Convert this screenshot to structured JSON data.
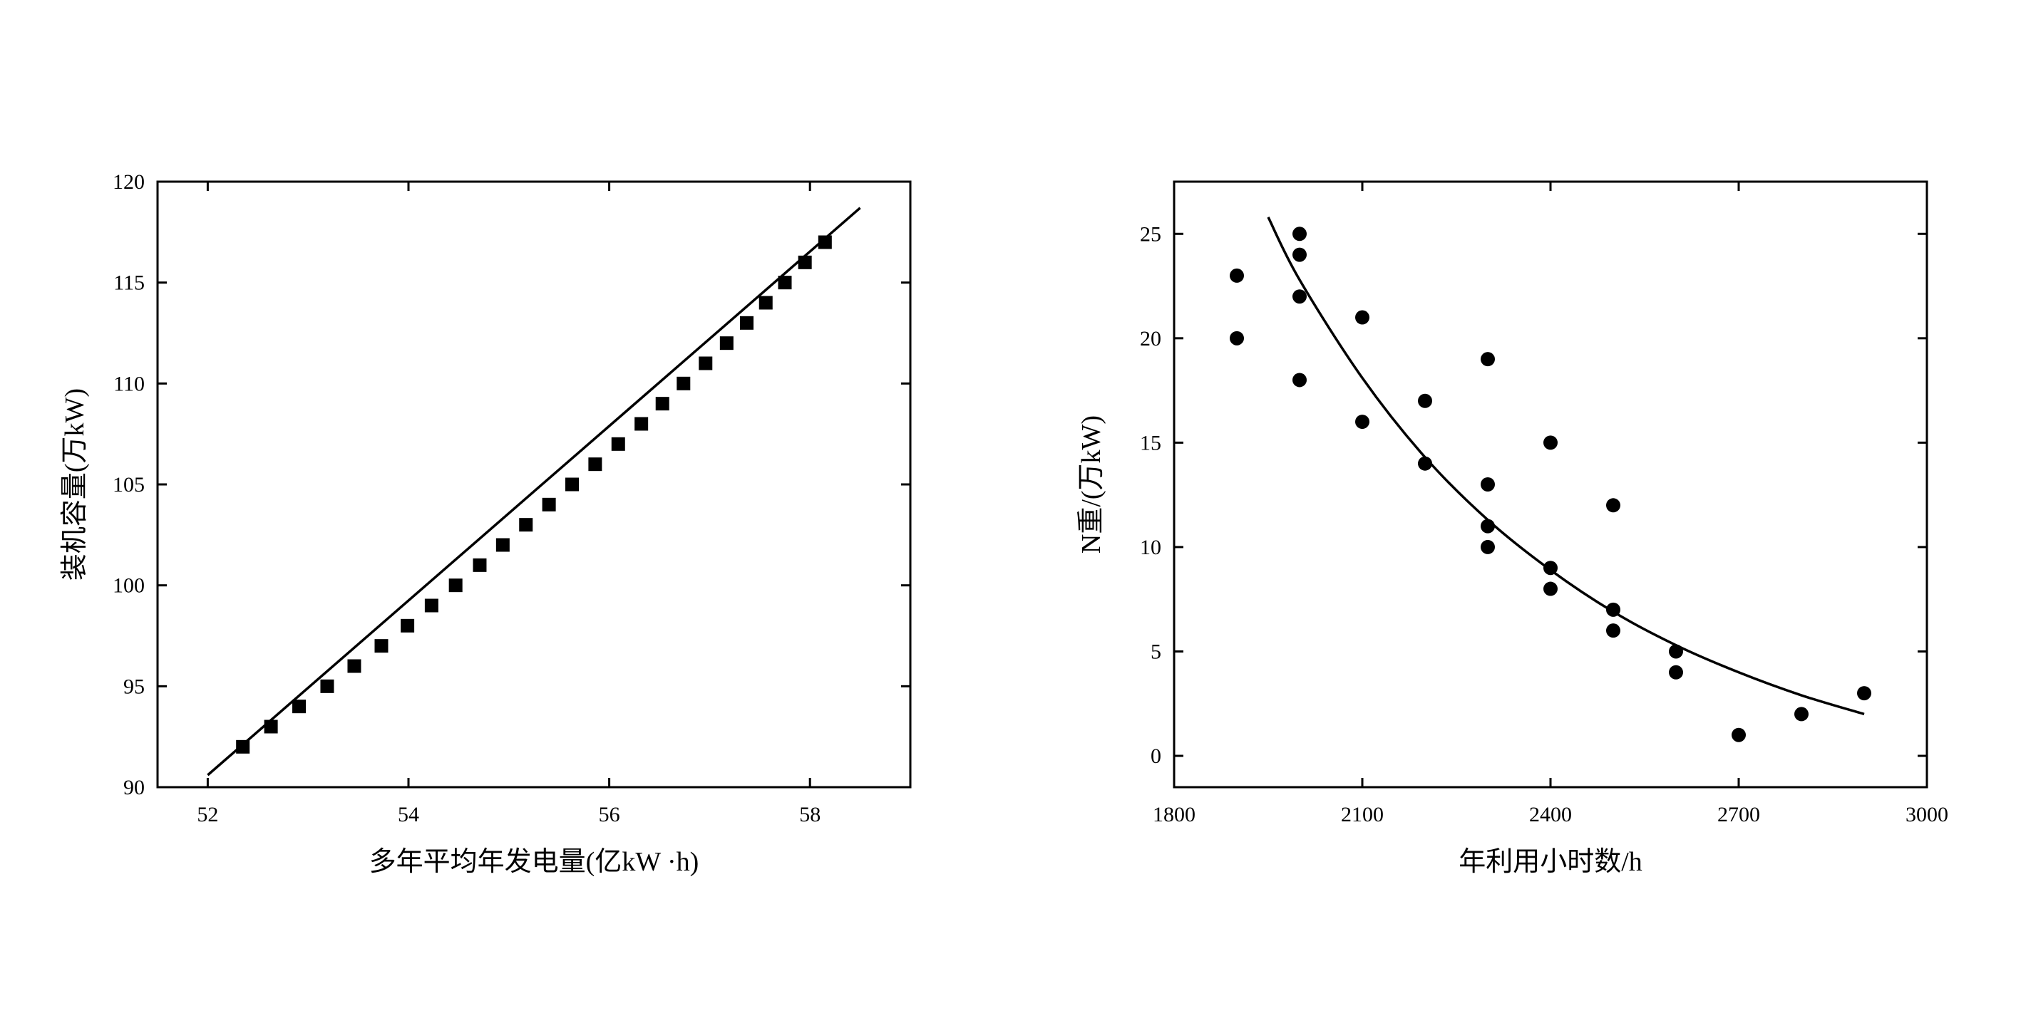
{
  "chart_data": [
    {
      "type": "line",
      "title": "",
      "xlabel": "多年平均年发电量(亿kW ·h)",
      "ylabel": "装机容量(万kW)",
      "xlim": [
        51.5,
        59.0
      ],
      "ylim": [
        90,
        120
      ],
      "xticks": [
        52,
        54,
        56,
        58
      ],
      "yticks": [
        90,
        95,
        100,
        105,
        110,
        115,
        120
      ],
      "grid": false,
      "legend": "none",
      "line": {
        "x": [
          52.0,
          58.5
        ],
        "y": [
          90.6,
          118.7
        ]
      },
      "markers": {
        "shape": "square",
        "x": [
          52.35,
          52.63,
          52.91,
          53.19,
          53.46,
          53.73,
          53.99,
          54.23,
          54.47,
          54.71,
          54.94,
          55.17,
          55.4,
          55.63,
          55.86,
          56.09,
          56.32,
          56.53,
          56.74,
          56.96,
          57.17,
          57.37,
          57.56,
          57.75,
          57.95,
          58.15
        ],
        "y": [
          92,
          93,
          94,
          95,
          96,
          97,
          98,
          99,
          100,
          101,
          102,
          103,
          104,
          105,
          106,
          107,
          108,
          109,
          110,
          111,
          112,
          113,
          114,
          115,
          116,
          117
        ]
      }
    },
    {
      "type": "scatter",
      "title": "",
      "xlabel": "年利用小时数/h",
      "ylabel": "N重/(万kW)",
      "xlim": [
        1800,
        3000
      ],
      "ylim": [
        -1.5,
        27.5
      ],
      "xticks": [
        1800,
        2100,
        2400,
        2700,
        3000
      ],
      "yticks": [
        0,
        5,
        10,
        15,
        20,
        25
      ],
      "grid": false,
      "legend": "none",
      "points": {
        "x": [
          1900,
          1900,
          2000,
          2000,
          2000,
          2000,
          2100,
          2100,
          2200,
          2200,
          2300,
          2300,
          2300,
          2300,
          2400,
          2400,
          2400,
          2500,
          2500,
          2500,
          2600,
          2600,
          2700,
          2800,
          2900
        ],
        "y": [
          23,
          20,
          25,
          24,
          22,
          18,
          21,
          16,
          17,
          14,
          19,
          13,
          11,
          10,
          15,
          9,
          8,
          12,
          7,
          6,
          5,
          4,
          1,
          2,
          3
        ]
      },
      "fit_curve": {
        "x": [
          1950,
          2000,
          2100,
          2200,
          2300,
          2400,
          2500,
          2600,
          2700,
          2800,
          2900
        ],
        "y": [
          25.8,
          22.8,
          18.1,
          14.3,
          11.3,
          8.9,
          6.9,
          5.3,
          4.0,
          2.9,
          2.0
        ]
      }
    }
  ]
}
